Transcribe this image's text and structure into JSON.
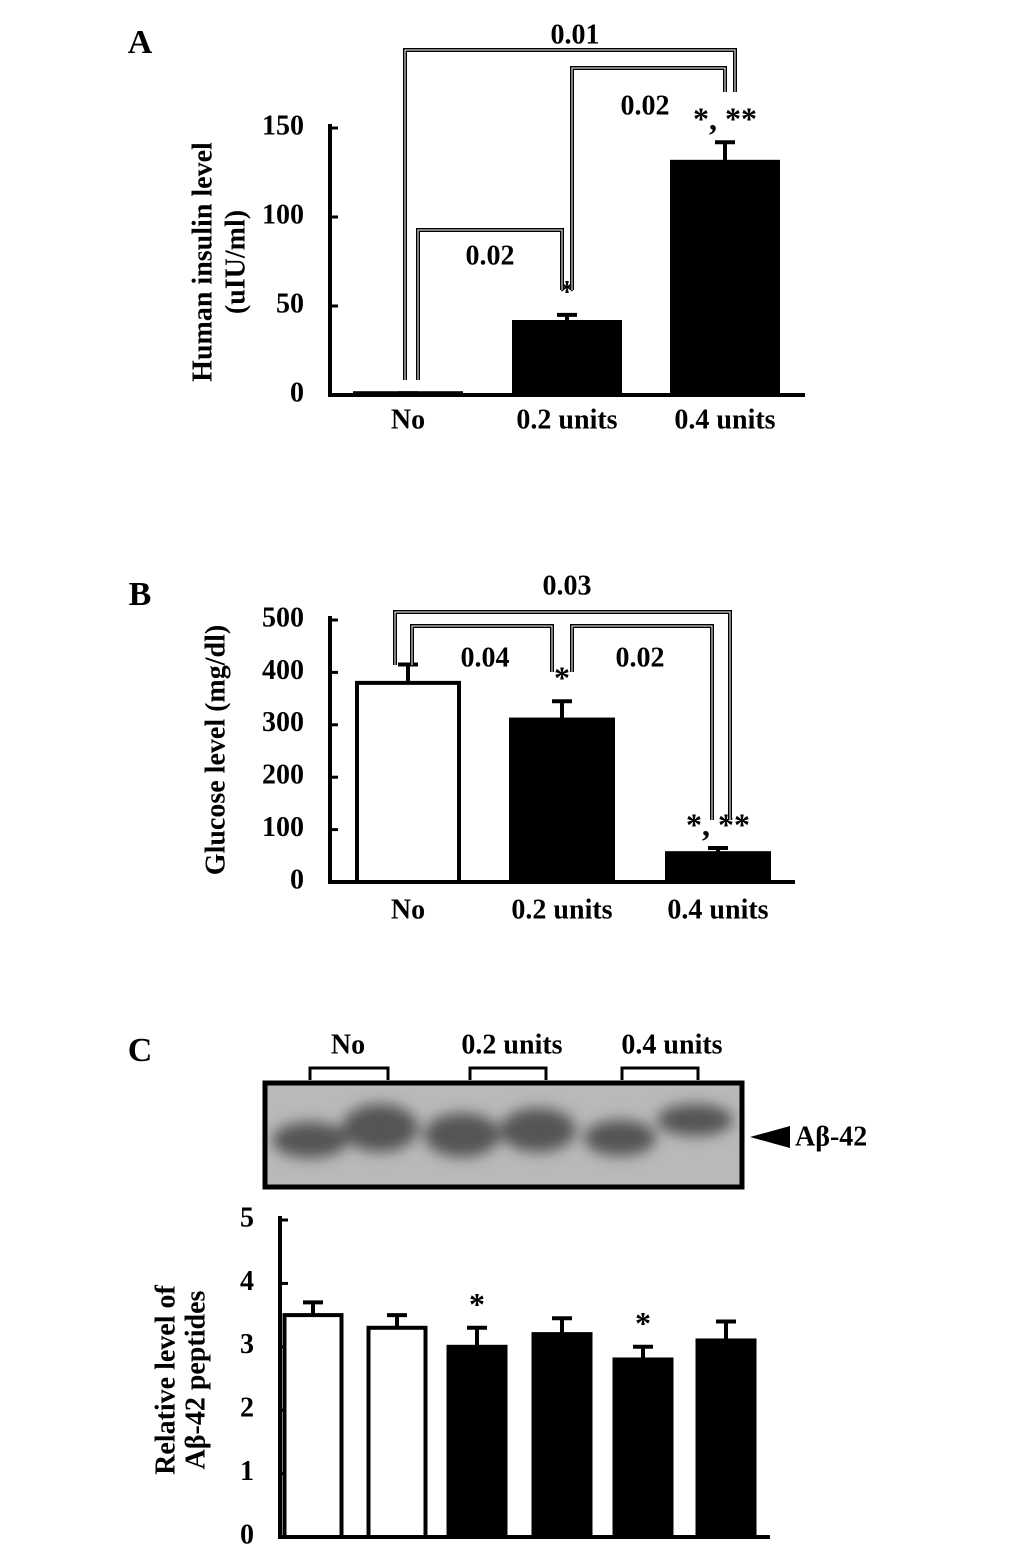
{
  "chart_data": [
    {
      "type": "bar",
      "panel": "A",
      "ylabel": [
        "Human insulin level",
        "(uIU/ml)"
      ],
      "categories": [
        "No",
        "0.2 units",
        "0.4 units"
      ],
      "values": [
        1,
        41,
        131
      ],
      "errors": [
        0,
        4,
        11
      ],
      "colors": [
        "#000000",
        "#000000",
        "#000000"
      ],
      "significance": [
        null,
        "*",
        "*, **"
      ],
      "annotations": [
        "0.01",
        "0.02",
        "0.02"
      ],
      "ylim": [
        0,
        150
      ],
      "yticks": [
        0,
        50,
        100,
        150
      ]
    },
    {
      "type": "bar",
      "panel": "B",
      "ylabel": [
        "Glucose level (mg/dl)"
      ],
      "categories": [
        "No",
        "0.2 units",
        "0.4 units"
      ],
      "values": [
        380,
        310,
        55
      ],
      "errors": [
        35,
        35,
        10
      ],
      "colors": [
        "#ffffff",
        "#000000",
        "#000000"
      ],
      "significance": [
        null,
        "*",
        "*, **"
      ],
      "annotations": [
        "0.03",
        "0.04",
        "0.02"
      ],
      "ylim": [
        0,
        500
      ],
      "yticks": [
        0,
        100,
        200,
        300,
        400,
        500
      ]
    },
    {
      "type": "bar",
      "panel": "C",
      "ylabel": [
        "Relative level of",
        "Aβ-42 peptides"
      ],
      "blot_groups": [
        "No",
        "0.2 units",
        "0.4 units"
      ],
      "blot_label": "Aβ-42",
      "categories": [
        null,
        null,
        null,
        null,
        null,
        null
      ],
      "values": [
        3.5,
        3.3,
        3.0,
        3.2,
        2.8,
        3.1
      ],
      "errors": [
        0.2,
        0.2,
        0.3,
        0.25,
        0.2,
        0.3
      ],
      "colors": [
        "#ffffff",
        "#ffffff",
        "#000000",
        "#000000",
        "#000000",
        "#000000"
      ],
      "significance": [
        null,
        null,
        "*",
        null,
        "*",
        null
      ],
      "ylim": [
        0,
        5
      ],
      "yticks": [
        0,
        1,
        2,
        3,
        4,
        5
      ]
    }
  ]
}
